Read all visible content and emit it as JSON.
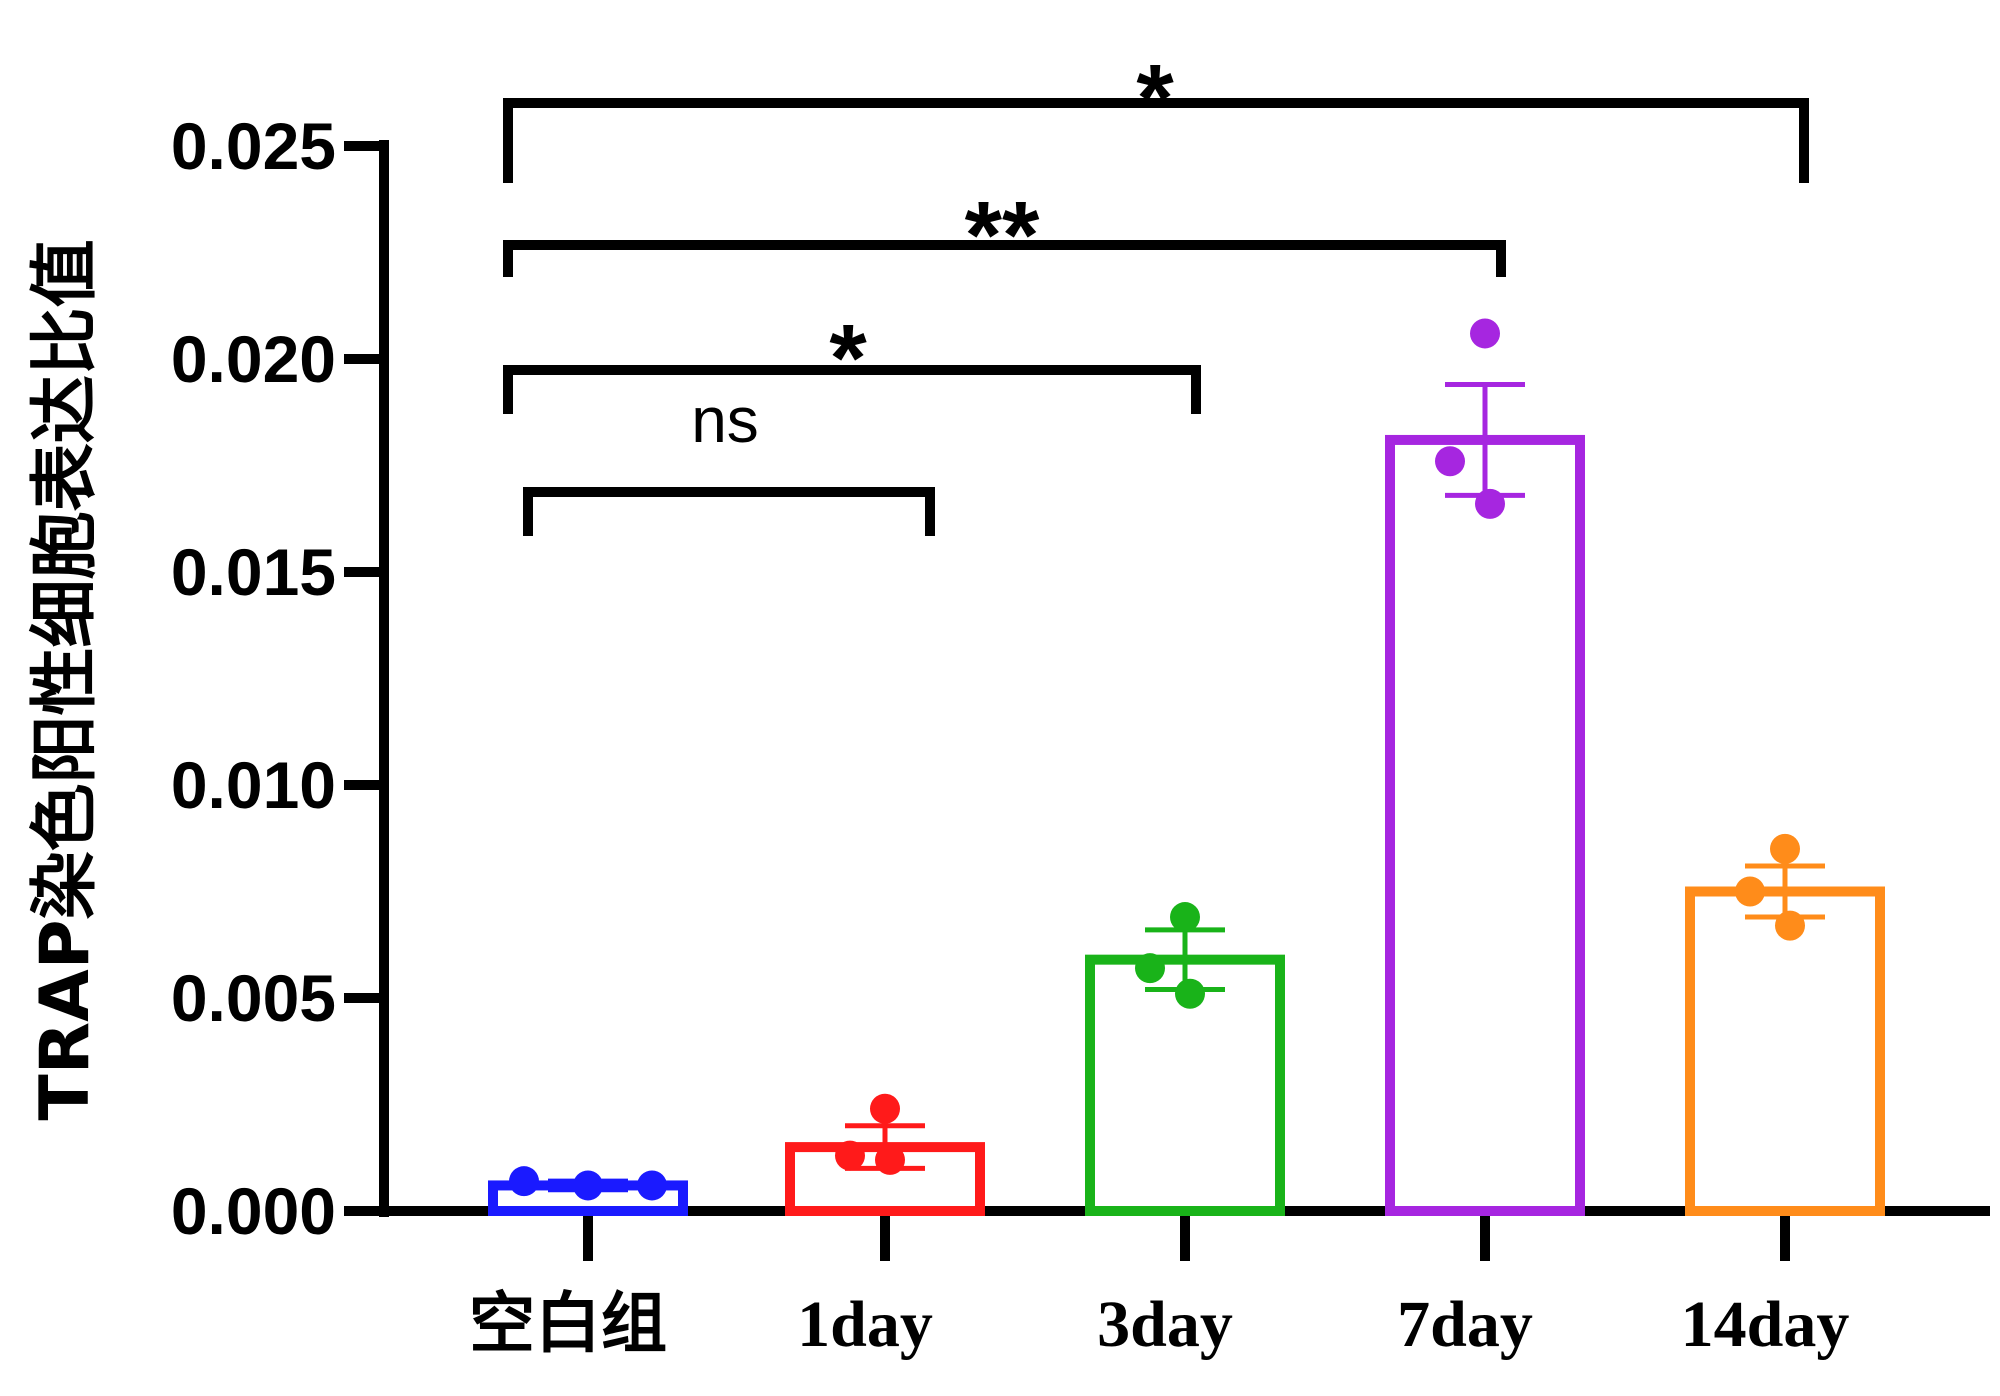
{
  "chart_data": {
    "type": "bar",
    "ylabel": "TRAP染色阳性细胞表达比值",
    "ylim": [
      0,
      0.025
    ],
    "yticks": [
      "0.000",
      "0.005",
      "0.010",
      "0.015",
      "0.020",
      "0.025"
    ],
    "grid": false,
    "categories": [
      "空白组",
      "1day",
      "3day",
      "7day",
      "14day"
    ],
    "colors": [
      "#1a1aff",
      "#ff1a1a",
      "#19b319",
      "#a626e0",
      "#ff8c1a"
    ],
    "values": [
      0.0006,
      0.0015,
      0.0059,
      0.0181,
      0.0075
    ],
    "errors": [
      0.0001,
      0.0005,
      0.0007,
      0.0013,
      0.0006
    ],
    "points": [
      [
        0.0007,
        0.0006,
        0.0006
      ],
      [
        0.0024,
        0.0013,
        0.0012
      ],
      [
        0.0069,
        0.0057,
        0.0051
      ],
      [
        0.0206,
        0.0176,
        0.0166
      ],
      [
        0.0085,
        0.0075,
        0.0067
      ]
    ],
    "significance": [
      {
        "from": "空白组",
        "to": "1day",
        "label": "ns"
      },
      {
        "from": "空白组",
        "to": "3day",
        "label": "*"
      },
      {
        "from": "空白组",
        "to": "7day",
        "label": "**"
      },
      {
        "from": "空白组",
        "to": "14day",
        "label": "*"
      }
    ]
  }
}
